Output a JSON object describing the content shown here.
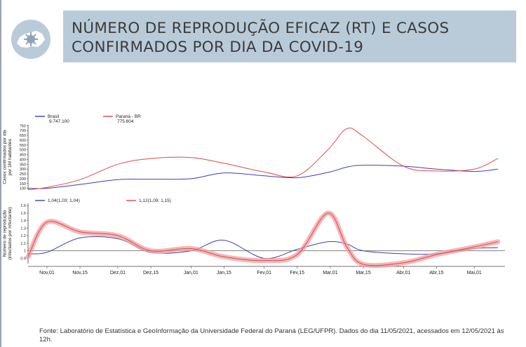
{
  "header": {
    "title": "NÚMERO DE REPRODUÇÃO EFICAZ (RT) E CASOS\nCONFIRMADOS POR DIA DA COVID-19",
    "logo_icon": "parana-virus-logo-icon",
    "accent": "#b9cbd9"
  },
  "footer": {
    "source": "Fonte: Laboratório de Estatística e GeoInformação da Universidade Federal do Paraná (LEG/UFPR). Dados do dia 11/05/2021, acessados em 12/05/2021 às 12h."
  },
  "colors": {
    "brasil": "#3d3dc0",
    "parana": "#e04848",
    "band": "#f2a0a0"
  },
  "chart_data": [
    {
      "type": "line",
      "ylabel": "Casos confirmados por dia por 1M habitantes",
      "yticks": [
        100,
        150,
        200,
        250,
        300,
        350,
        400,
        450,
        500,
        550,
        600,
        650,
        700,
        750
      ],
      "ylim": [
        90,
        760
      ],
      "grid": false,
      "legend": "top-left",
      "x": [
        "2020-10-24",
        "2020-11-01",
        "2020-11-15",
        "2020-12-01",
        "2020-12-15",
        "2021-01-01",
        "2021-01-15",
        "2021-02-01",
        "2021-02-15",
        "2021-02-28",
        "2021-03-08",
        "2021-03-15",
        "2021-04-01",
        "2021-04-15",
        "2021-05-01",
        "2021-05-11"
      ],
      "series": [
        {
          "name": "Brasil",
          "legend_value": "9.747.100",
          "values": [
            100,
            100,
            140,
            190,
            195,
            200,
            260,
            230,
            210,
            265,
            320,
            340,
            330,
            300,
            275,
            300
          ]
        },
        {
          "name": "Paraná - BR",
          "legend_value": "775.604",
          "values": [
            85,
            110,
            190,
            350,
            410,
            420,
            360,
            270,
            230,
            500,
            720,
            640,
            330,
            280,
            300,
            410
          ]
        }
      ]
    },
    {
      "type": "line",
      "ylabel": "Número de reprodução (infectados por infectante)",
      "yticks": [
        "0.9",
        "1",
        "1.1",
        "1.2",
        "1.3",
        "1.4",
        "1.5",
        "1.6"
      ],
      "ylim": [
        0.83,
        1.63
      ],
      "reference_line": 1,
      "legend": "top-left",
      "xticks": [
        "Nov,01",
        "Nov,15",
        "Dez,01",
        "Dez,15",
        "Jan,01",
        "Jan,15",
        "Fev,01",
        "Fev,15",
        "Mar,01",
        "Mar,15",
        "Abr,01",
        "Abr,15",
        "Mai,01"
      ],
      "x": [
        "2020-10-24",
        "2020-11-01",
        "2020-11-15",
        "2020-12-01",
        "2020-12-15",
        "2021-01-01",
        "2021-01-15",
        "2021-02-01",
        "2021-02-15",
        "2021-02-28",
        "2021-03-08",
        "2021-03-15",
        "2021-04-01",
        "2021-04-15",
        "2021-05-01",
        "2021-05-11"
      ],
      "series": [
        {
          "name": "1,04(1,03; 1,04)",
          "values": [
            0.96,
            0.98,
            1.17,
            1.16,
            0.98,
            1.0,
            1.14,
            0.9,
            1.02,
            1.12,
            1.09,
            1.0,
            0.96,
            0.96,
            1.03,
            1.04
          ]
        },
        {
          "name": "1,12(1,09; 1,15)",
          "values": [
            0.92,
            1.38,
            1.25,
            1.2,
            1.0,
            1.03,
            0.92,
            0.87,
            0.95,
            1.5,
            1.05,
            0.82,
            0.84,
            0.95,
            1.05,
            1.12
          ],
          "band": 0.04
        }
      ]
    }
  ]
}
